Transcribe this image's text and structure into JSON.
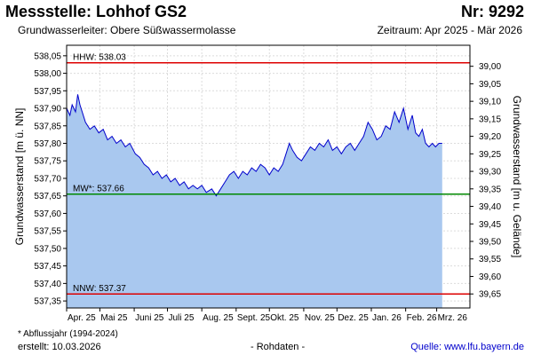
{
  "header": {
    "station": "Messstelle: Lohhof GS2",
    "number": "Nr: 9292",
    "aquifer": "Grundwasserleiter:   Obere Süßwassermolasse",
    "period": "Zeitraum: Apr 2025 - Mär 2026"
  },
  "footer": {
    "footnote": "* Abflussjahr (1994-2024)",
    "created": "erstellt:  10.03.2026",
    "rawdata": "- Rohdaten -",
    "source": "Quelle:  www.lfu.bayern.de"
  },
  "chart_data": {
    "type": "area",
    "ylabel": "Grundwasserstand [m ü. NN]",
    "y2label": "Grundwasserstand [m u. Gelände]",
    "ylim": [
      537.33,
      538.08
    ],
    "y_ticks": [
      537.35,
      537.4,
      537.45,
      537.5,
      537.55,
      537.6,
      537.65,
      537.7,
      537.75,
      537.8,
      537.85,
      537.9,
      537.95,
      538.0,
      538.05
    ],
    "y_tick_labels": [
      "537,35",
      "537,40",
      "537,45",
      "537,50",
      "537,55",
      "537,60",
      "537,65",
      "537,70",
      "537,75",
      "537,80",
      "537,85",
      "537,90",
      "537,95",
      "538,00",
      "538,05"
    ],
    "y2_ticks": [
      39.0,
      39.05,
      39.1,
      39.15,
      39.2,
      39.25,
      39.3,
      39.35,
      39.4,
      39.45,
      39.5,
      39.55,
      39.6,
      39.65
    ],
    "y2_tick_labels": [
      "39,00",
      "39,05",
      "39,10",
      "39,15",
      "39,20",
      "39,25",
      "39,30",
      "39,35",
      "39,40",
      "39,45",
      "39,50",
      "39,55",
      "39,60",
      "39,65"
    ],
    "y2_reference": 577.02,
    "x_start": "2025-04-01",
    "x_end": "2026-03-31",
    "x_ticks": [
      "2025-04-01",
      "2025-05-01",
      "2025-06-01",
      "2025-07-01",
      "2025-08-01",
      "2025-09-01",
      "2025-10-01",
      "2025-11-01",
      "2025-12-01",
      "2026-01-01",
      "2026-02-01",
      "2026-03-01"
    ],
    "x_tick_labels": [
      "Apr. 25",
      "Mai 25",
      "Juni 25",
      "Juli 25",
      "Aug. 25",
      "Sept. 25",
      "Okt. 25",
      "Nov. 25",
      "Dez. 25",
      "Jan. 26",
      "Feb. 26",
      "Mrz. 26"
    ],
    "grid": true,
    "reference_lines": [
      {
        "label": "HHW: 538.03",
        "value": 538.03,
        "color": "#dd0000"
      },
      {
        "label": "MW*: 537.66",
        "value": 537.655,
        "color": "#008800"
      },
      {
        "label": "NNW: 537.37",
        "value": 537.37,
        "color": "#dd0000"
      }
    ],
    "series": [
      {
        "color": "#0000cc",
        "fill": "#a9c8ef",
        "points": [
          [
            "2025-04-01",
            537.9
          ],
          [
            "2025-04-04",
            537.88
          ],
          [
            "2025-04-06",
            537.91
          ],
          [
            "2025-04-09",
            537.89
          ],
          [
            "2025-04-11",
            537.94
          ],
          [
            "2025-04-13",
            537.91
          ],
          [
            "2025-04-15",
            537.89
          ],
          [
            "2025-04-18",
            537.86
          ],
          [
            "2025-04-22",
            537.84
          ],
          [
            "2025-04-26",
            537.85
          ],
          [
            "2025-04-30",
            537.83
          ],
          [
            "2025-05-04",
            537.84
          ],
          [
            "2025-05-08",
            537.81
          ],
          [
            "2025-05-12",
            537.82
          ],
          [
            "2025-05-16",
            537.8
          ],
          [
            "2025-05-20",
            537.81
          ],
          [
            "2025-05-24",
            537.79
          ],
          [
            "2025-05-28",
            537.8
          ],
          [
            "2025-06-02",
            537.77
          ],
          [
            "2025-06-06",
            537.76
          ],
          [
            "2025-06-10",
            537.74
          ],
          [
            "2025-06-14",
            537.73
          ],
          [
            "2025-06-18",
            537.71
          ],
          [
            "2025-06-22",
            537.72
          ],
          [
            "2025-06-26",
            537.7
          ],
          [
            "2025-06-30",
            537.71
          ],
          [
            "2025-07-04",
            537.69
          ],
          [
            "2025-07-08",
            537.7
          ],
          [
            "2025-07-12",
            537.68
          ],
          [
            "2025-07-16",
            537.69
          ],
          [
            "2025-07-20",
            537.67
          ],
          [
            "2025-07-24",
            537.68
          ],
          [
            "2025-07-28",
            537.67
          ],
          [
            "2025-08-01",
            537.68
          ],
          [
            "2025-08-05",
            537.66
          ],
          [
            "2025-08-10",
            537.67
          ],
          [
            "2025-08-14",
            537.65
          ],
          [
            "2025-08-18",
            537.67
          ],
          [
            "2025-08-22",
            537.69
          ],
          [
            "2025-08-26",
            537.71
          ],
          [
            "2025-08-30",
            537.72
          ],
          [
            "2025-09-03",
            537.7
          ],
          [
            "2025-09-07",
            537.72
          ],
          [
            "2025-09-11",
            537.71
          ],
          [
            "2025-09-15",
            537.73
          ],
          [
            "2025-09-19",
            537.72
          ],
          [
            "2025-09-23",
            537.74
          ],
          [
            "2025-09-27",
            537.73
          ],
          [
            "2025-10-01",
            537.71
          ],
          [
            "2025-10-05",
            537.73
          ],
          [
            "2025-10-09",
            537.72
          ],
          [
            "2025-10-13",
            537.74
          ],
          [
            "2025-10-16",
            537.77
          ],
          [
            "2025-10-19",
            537.8
          ],
          [
            "2025-10-22",
            537.78
          ],
          [
            "2025-10-26",
            537.76
          ],
          [
            "2025-10-30",
            537.75
          ],
          [
            "2025-11-03",
            537.77
          ],
          [
            "2025-11-07",
            537.79
          ],
          [
            "2025-11-11",
            537.78
          ],
          [
            "2025-11-15",
            537.8
          ],
          [
            "2025-11-19",
            537.79
          ],
          [
            "2025-11-23",
            537.81
          ],
          [
            "2025-11-27",
            537.78
          ],
          [
            "2025-12-01",
            537.79
          ],
          [
            "2025-12-05",
            537.77
          ],
          [
            "2025-12-09",
            537.79
          ],
          [
            "2025-12-13",
            537.8
          ],
          [
            "2025-12-17",
            537.78
          ],
          [
            "2025-12-21",
            537.8
          ],
          [
            "2025-12-25",
            537.82
          ],
          [
            "2025-12-29",
            537.86
          ],
          [
            "2026-01-02",
            537.84
          ],
          [
            "2026-01-06",
            537.81
          ],
          [
            "2026-01-10",
            537.82
          ],
          [
            "2026-01-14",
            537.85
          ],
          [
            "2026-01-18",
            537.84
          ],
          [
            "2026-01-22",
            537.89
          ],
          [
            "2026-01-26",
            537.86
          ],
          [
            "2026-01-30",
            537.9
          ],
          [
            "2026-02-03",
            537.84
          ],
          [
            "2026-02-07",
            537.88
          ],
          [
            "2026-02-10",
            537.83
          ],
          [
            "2026-02-13",
            537.82
          ],
          [
            "2026-02-16",
            537.84
          ],
          [
            "2026-02-19",
            537.8
          ],
          [
            "2026-02-22",
            537.79
          ],
          [
            "2026-02-25",
            537.8
          ],
          [
            "2026-02-28",
            537.79
          ],
          [
            "2026-03-03",
            537.8
          ],
          [
            "2026-03-06",
            537.8
          ]
        ]
      }
    ]
  }
}
